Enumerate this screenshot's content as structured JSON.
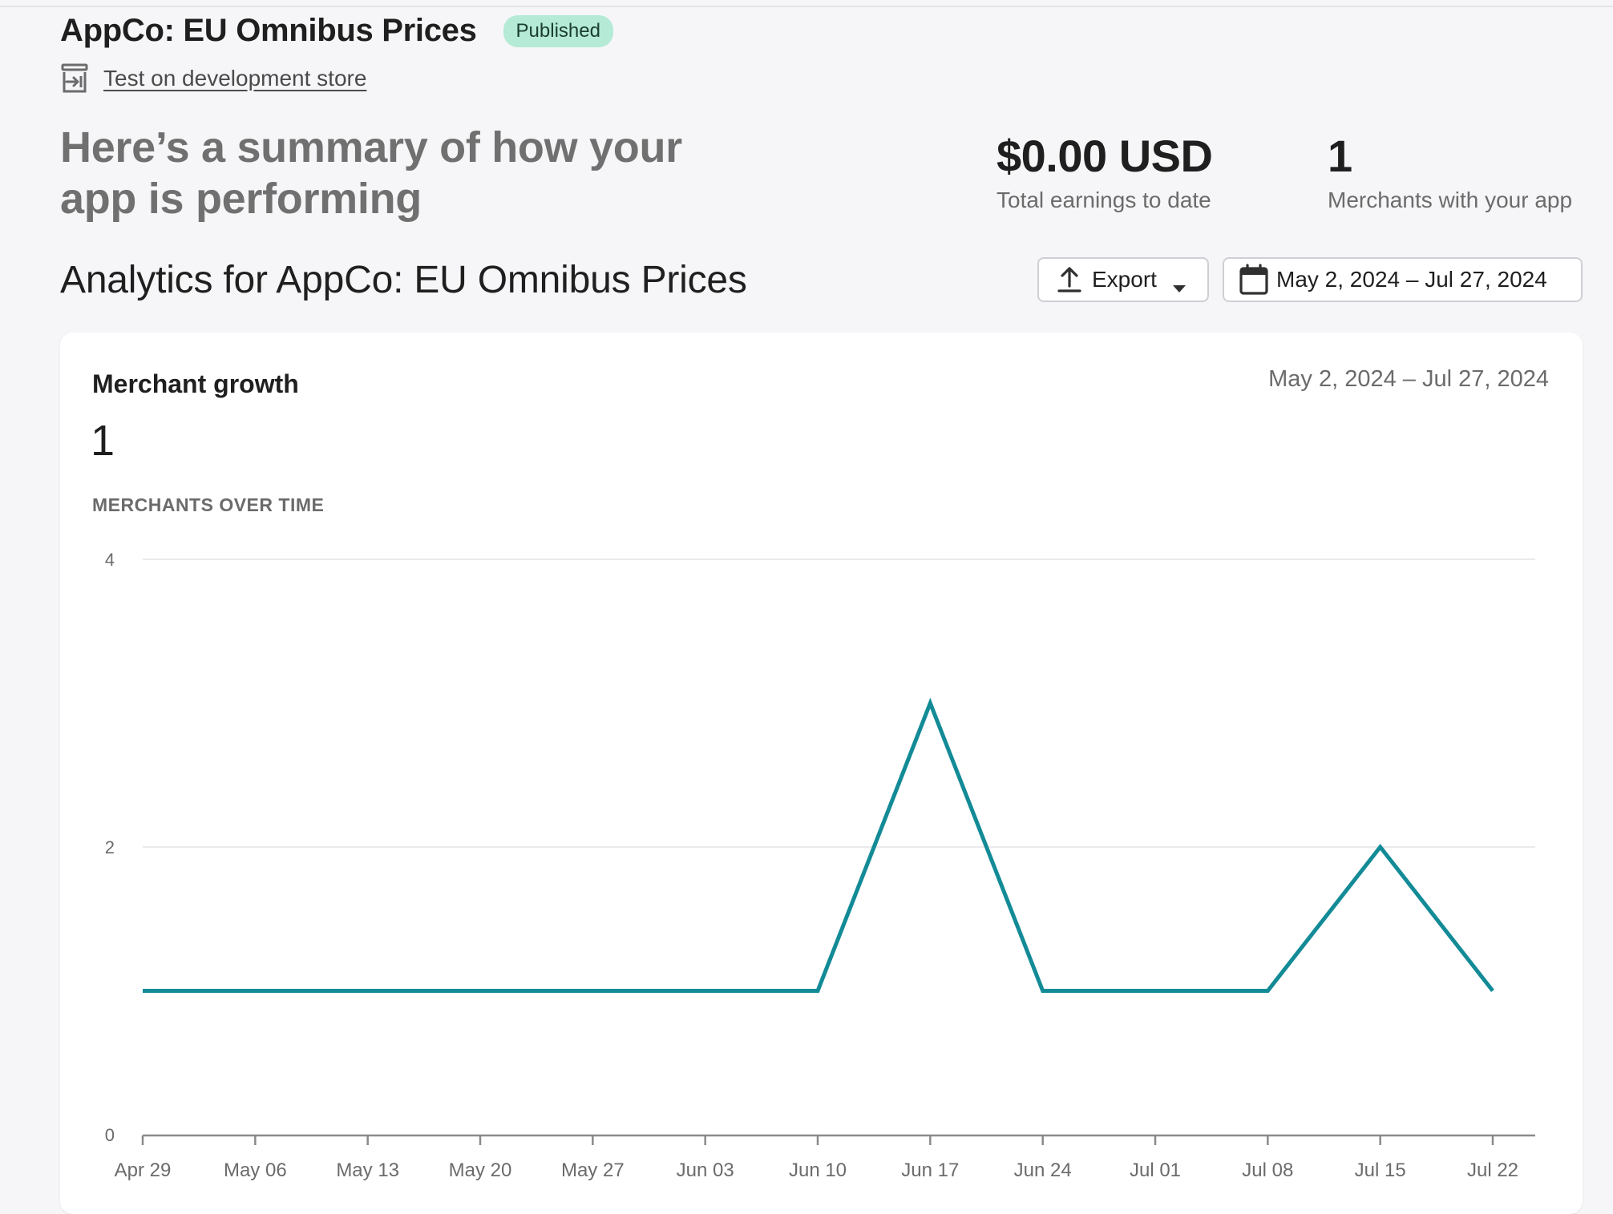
{
  "header": {
    "app_title": "AppCo: EU Omnibus Prices",
    "status_badge": "Published",
    "dev_store_link": "Test on development store"
  },
  "summary": {
    "heading": "Here’s a summary of how your app is performing",
    "earnings_value": "$0.00 USD",
    "earnings_label": "Total earnings to date",
    "merchants_value": "1",
    "merchants_label": "Merchants with your app"
  },
  "analytics": {
    "title": "Analytics for AppCo: EU Omnibus Prices",
    "export_label": "Export",
    "date_range": "May 2, 2024 – Jul 27, 2024"
  },
  "card": {
    "title": "Merchant growth",
    "date_range": "May 2, 2024 – Jul 27, 2024",
    "count": "1",
    "chart_label": "MERCHANTS OVER TIME"
  },
  "colors": {
    "line": "#138b97",
    "badge_bg": "#b4ead6",
    "grid": "#e4e4e7"
  },
  "chart_data": {
    "type": "line",
    "title": "MERCHANTS OVER TIME",
    "xlabel": "",
    "ylabel": "",
    "ylim": [
      0,
      4
    ],
    "y_ticks": [
      "0",
      "2",
      "4"
    ],
    "categories": [
      "Apr 29",
      "May 06",
      "May 13",
      "May 20",
      "May 27",
      "Jun 03",
      "Jun 10",
      "Jun 17",
      "Jun 24",
      "Jul 01",
      "Jul 08",
      "Jul 15",
      "Jul 22"
    ],
    "series": [
      {
        "values": [
          1,
          1,
          1,
          1,
          1,
          1,
          1,
          3,
          1,
          1,
          1,
          2,
          1
        ]
      }
    ],
    "grid": true,
    "legend": "none"
  }
}
